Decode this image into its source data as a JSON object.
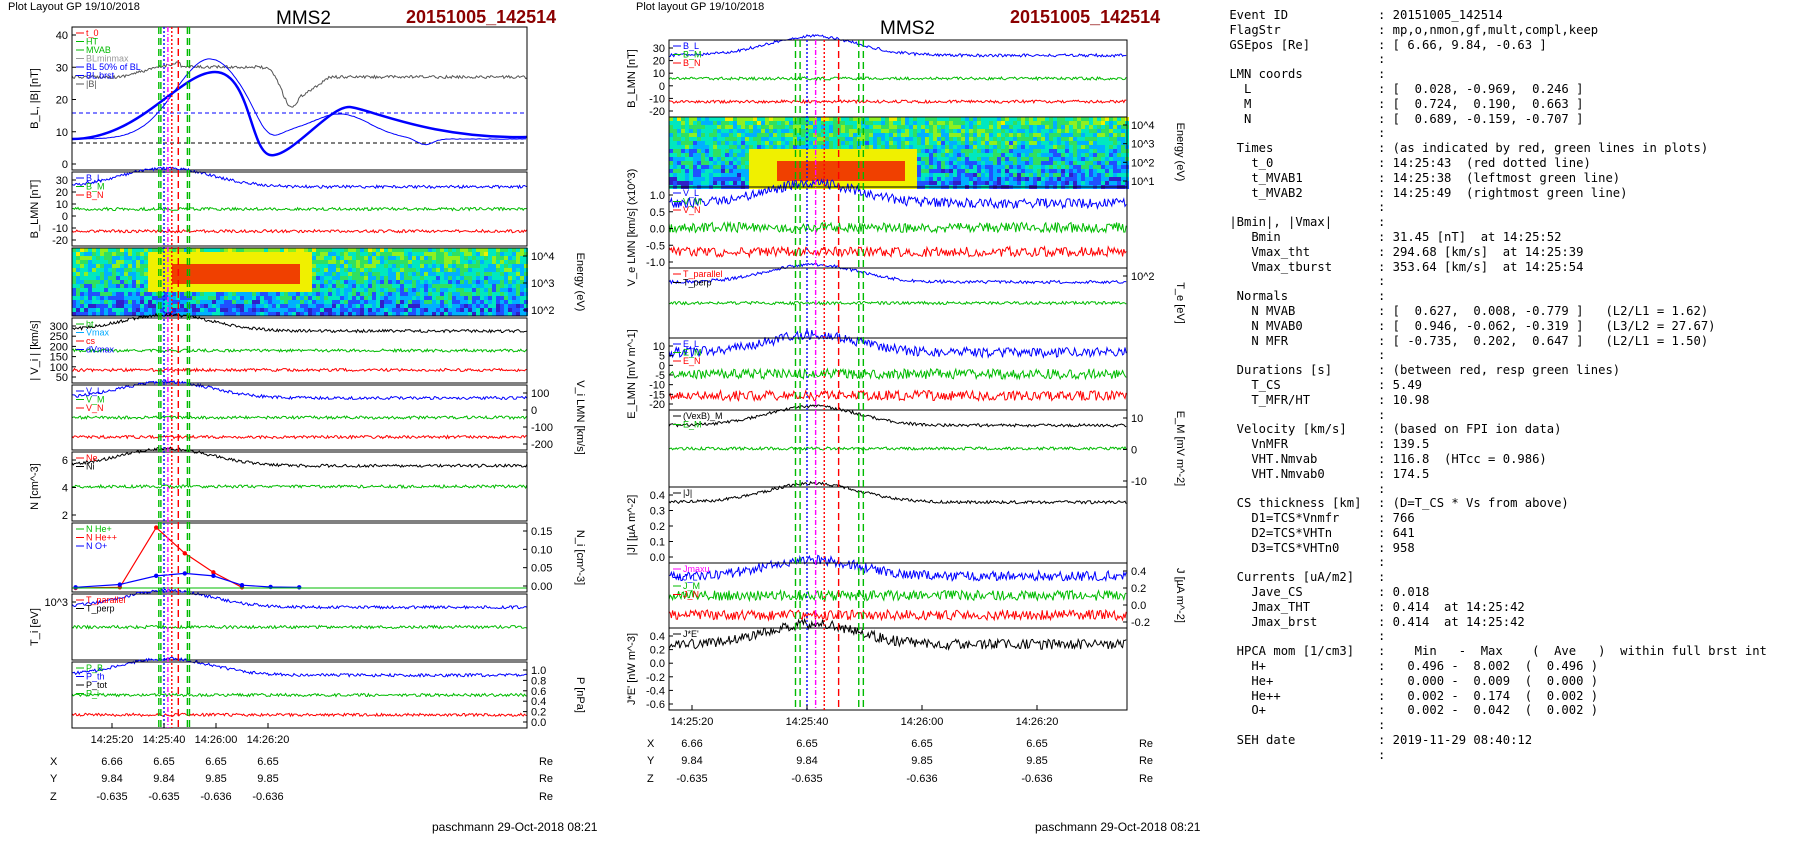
{
  "header": {
    "left_title": "Plot Layout GP 19/10/2018",
    "middle_title": "Plot layout GP 19/10/2018",
    "spacecraft": "MMS2",
    "event": "20151005_142514"
  },
  "footer": {
    "signature": "paschmann 29-Oct-2018 08:21"
  },
  "colors": {
    "event_red": "#8b0000",
    "red": "#ff0000",
    "green": "#00bb00",
    "blue": "#0000ff",
    "magenta": "#ff00ff",
    "gray": "#666666"
  },
  "time_axis": {
    "ticks": [
      "14:25:20",
      "14:25:40",
      "14:26:00",
      "14:26:20"
    ],
    "markers": {
      "t_0": "14:25:43",
      "t_MVAB1": "14:25:38",
      "t_MVAB2": "14:25:49"
    }
  },
  "positions": {
    "labels": [
      "X",
      "Y",
      "Z"
    ],
    "unit": "Re",
    "rows": [
      [
        "6.66",
        "6.65",
        "6.65",
        "6.65"
      ],
      [
        "9.84",
        "9.84",
        "9.85",
        "9.85"
      ],
      [
        "-0.635",
        "-0.635",
        "-0.636",
        "-0.636"
      ]
    ]
  },
  "chart_data": [
    {
      "type": "line",
      "name": "left-column",
      "panels": [
        {
          "id": "L1",
          "ylabel": "B_L, |B| [nT]",
          "yticks": [
            "40",
            "30",
            "20",
            "10",
            "0"
          ],
          "ylim": [
            -7,
            42
          ],
          "legend": [
            "t_0",
            "HT",
            "MVAB",
            "BLminmax",
            "BL 50% of BL",
            "BL brst",
            "|B|"
          ]
        },
        {
          "id": "L2",
          "ylabel": "B_LMN [nT]",
          "yticks": [
            "30",
            "20",
            "10",
            "0",
            "-10",
            "-20"
          ],
          "legend": [
            "B_L",
            "B_M",
            "B_N"
          ]
        },
        {
          "id": "L3",
          "ylabel": "Energy (eV)",
          "yticks": [
            "10^4",
            "10^3",
            "10^2"
          ],
          "legend": []
        },
        {
          "id": "L4",
          "ylabel": "| V_i | [km/s]",
          "yticks": [
            "300",
            "250",
            "200",
            "150",
            "100",
            "50"
          ],
          "legend": [
            "ht",
            "Vmax",
            "cs",
            "dVmax"
          ]
        },
        {
          "id": "L5",
          "ylabel": "V_i LMN [km/s]",
          "yticks": [
            "100",
            "0",
            "-100",
            "-200"
          ],
          "legend": [
            "V_L",
            "V_M",
            "V_N"
          ]
        },
        {
          "id": "L6",
          "ylabel": "N [cm^-3]",
          "yticks": [
            "6",
            "4",
            "2"
          ],
          "legend": [
            "Ne",
            "Ni"
          ]
        },
        {
          "id": "L7",
          "ylabel": "N_i [cm^-3]",
          "yticks": [
            "0.15",
            "0.10",
            "0.05",
            "0.00"
          ],
          "legend": [
            "N He+",
            "N He++",
            "N O+"
          ],
          "series": [
            {
              "name": "N He++",
              "x": [
                "14:25:06",
                "14:25:23",
                "14:25:37",
                "14:25:48",
                "14:25:59",
                "14:26:10"
              ],
              "values": [
                0.0,
                0.002,
                0.174,
                0.1,
                0.045,
                0.002
              ]
            },
            {
              "name": "N O+",
              "x": [
                "14:25:06",
                "14:25:23",
                "14:25:37",
                "14:25:48",
                "14:25:59",
                "14:26:10",
                "14:26:21",
                "14:26:32"
              ],
              "values": [
                0.002,
                0.01,
                0.035,
                0.042,
                0.035,
                0.008,
                0.003,
                0.002
              ]
            }
          ]
        },
        {
          "id": "L8",
          "ylabel": "T_i [eV]",
          "yticks": [
            "10^3"
          ],
          "legend": [
            "T_parallel",
            "T_perp"
          ]
        },
        {
          "id": "L9",
          "ylabel": "P [nPa]",
          "yticks": [
            "1.0",
            "0.8",
            "0.6",
            "0.4",
            "0.2",
            "0.0"
          ],
          "legend": [
            "P_B",
            "P_th",
            "P_tot",
            "P_i"
          ]
        }
      ]
    },
    {
      "type": "line",
      "name": "middle-column",
      "panels": [
        {
          "id": "M1",
          "ylabel": "B_LMN [nT]",
          "yticks": [
            "30",
            "20",
            "10",
            "0",
            "-10",
            "-20"
          ],
          "legend": [
            "B_L",
            "B_M",
            "B_N"
          ]
        },
        {
          "id": "M2",
          "ylabel": "Energy (eV)",
          "yticks": [
            "10^4",
            "10^3",
            "10^2",
            "10^1"
          ],
          "legend": []
        },
        {
          "id": "M3",
          "ylabel": "V_e LMN [km/s] (x10^3)",
          "yticks": [
            "1.0",
            "0.5",
            "0.0",
            "-0.5",
            "-1.0"
          ],
          "legend": [
            "V_L",
            "V_M",
            "V_N"
          ]
        },
        {
          "id": "M4",
          "ylabel": "T_e [eV]",
          "yticks": [
            "10^2"
          ],
          "legend": [
            "T_parallel",
            "T_perp"
          ]
        },
        {
          "id": "M5",
          "ylabel": "E_LMN [mV m^-1]",
          "yticks": [
            "10",
            "5",
            "0",
            "-5",
            "-10",
            "-15",
            "-20"
          ],
          "legend": [
            "E_L",
            "E_M",
            "E_N"
          ]
        },
        {
          "id": "M6",
          "ylabel": "E_M [mV m^-2]",
          "yticks": [
            "10",
            "0",
            "-10"
          ],
          "legend": [
            "(VexB)_M",
            "E_M"
          ]
        },
        {
          "id": "M7",
          "ylabel": "|J| [µA m^-2]",
          "yticks": [
            "0.4",
            "0.3",
            "0.2",
            "0.1",
            "0.0"
          ],
          "legend": [
            "|J|"
          ]
        },
        {
          "id": "M8",
          "ylabel": "J [µA m^-2]",
          "yticks": [
            "0.4",
            "0.2",
            "0.0",
            "-0.2"
          ],
          "legend": [
            "Jmaxu",
            "J_L",
            "J_M",
            "J_N"
          ]
        },
        {
          "id": "M9",
          "ylabel": "J*E' [nW m^-3]",
          "yticks": [
            "0.4",
            "0.2",
            "0.0",
            "-0.2",
            "-0.4",
            "-0.6"
          ],
          "legend": [
            "J*E'"
          ]
        }
      ]
    }
  ],
  "info_lines": [
    [
      "Event ID",
      ": 20151005_142514"
    ],
    [
      "FlagStr",
      ": mp,o,nmon,gf,mult,compl,keep"
    ],
    [
      "GSEpos [Re]",
      ": [ 6.66, 9.84, -0.63 ]"
    ],
    [
      "",
      ":"
    ],
    [
      "LMN coords",
      ":"
    ],
    [
      "  L",
      ": [  0.028, -0.969,  0.246 ]"
    ],
    [
      "  M",
      ": [  0.724,  0.190,  0.663 ]"
    ],
    [
      "  N",
      ": [  0.689, -0.159, -0.707 ]"
    ],
    [
      "",
      ":"
    ],
    [
      " Times",
      ": (as indicated by red, green lines in plots)"
    ],
    [
      "   t_0",
      ": 14:25:43  (red dotted line)"
    ],
    [
      "   t_MVAB1",
      ": 14:25:38  (leftmost green line)"
    ],
    [
      "   t_MVAB2",
      ": 14:25:49  (rightmost green line)"
    ],
    [
      "",
      ":"
    ],
    [
      "|Bmin|, |Vmax|",
      ":"
    ],
    [
      "   Bmin",
      ": 31.45 [nT]  at 14:25:52"
    ],
    [
      "   Vmax_tht",
      ": 294.68 [km/s]  at 14:25:39"
    ],
    [
      "   Vmax_tburst",
      ": 353.64 [km/s]  at 14:25:54"
    ],
    [
      "",
      ":"
    ],
    [
      " Normals",
      ":"
    ],
    [
      "   N MVAB",
      ": [  0.627,  0.008, -0.779 ]   (L2/L1 = 1.62)"
    ],
    [
      "   N MVAB0",
      ": [  0.946, -0.062, -0.319 ]   (L3/L2 = 27.67)"
    ],
    [
      "   N MFR",
      ": [ -0.735,  0.202,  0.647 ]   (L2/L1 = 1.50)"
    ],
    [
      "",
      ":"
    ],
    [
      " Durations [s]",
      ": (between red, resp green lines)"
    ],
    [
      "   T_CS",
      ": 5.49"
    ],
    [
      "   T_MFR/HT",
      ": 10.98"
    ],
    [
      "",
      ":"
    ],
    [
      " Velocity [km/s]",
      ": (based on FPI ion data)"
    ],
    [
      "   VnMFR",
      ": 139.5"
    ],
    [
      "   VHT.Nmvab",
      ": 116.8  (HTcc = 0.986)"
    ],
    [
      "   VHT.Nmvab0",
      ": 174.5"
    ],
    [
      "",
      ":"
    ],
    [
      " CS thickness [km]",
      ": (D=T_CS * Vs from above)"
    ],
    [
      "   D1=TCS*Vnmfr",
      ": 766"
    ],
    [
      "   D2=TCS*VHTn",
      ": 641"
    ],
    [
      "   D3=TCS*VHTn0",
      ": 958"
    ],
    [
      "",
      ":"
    ],
    [
      " Currents [uA/m2]",
      ":"
    ],
    [
      "   Jave_CS",
      ": 0.018"
    ],
    [
      "   Jmax_THT",
      ": 0.414  at 14:25:42"
    ],
    [
      "   Jmax_brst",
      ": 0.414  at 14:25:42"
    ],
    [
      "",
      ":"
    ],
    [
      " HPCA mom [1/cm3]",
      ":    Min   -  Max    (  Ave   )  within full brst int"
    ],
    [
      "   H+",
      ":   0.496 -  8.002  (  0.496 )"
    ],
    [
      "   He+",
      ":   0.000 -  0.009  (  0.000 )"
    ],
    [
      "   He++",
      ":   0.002 -  0.174  (  0.002 )"
    ],
    [
      "   O+",
      ":   0.002 -  0.042  (  0.002 )"
    ],
    [
      "",
      ":"
    ],
    [
      " SEH date",
      ": 2019-11-29 08:40:12"
    ],
    [
      "",
      ":"
    ]
  ]
}
